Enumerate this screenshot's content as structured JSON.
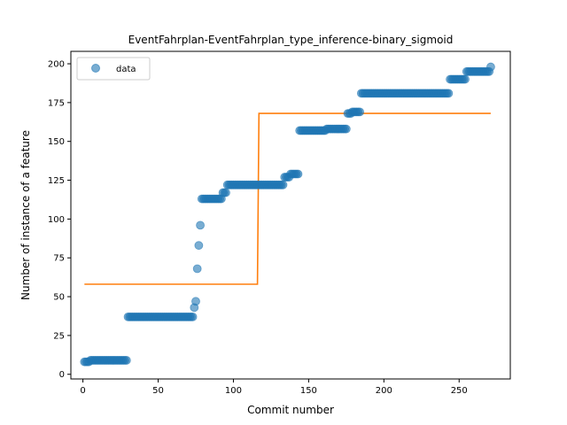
{
  "chart_data": {
    "type": "scatter",
    "title": "EventFahrplan-EventFahrplan_type_inference-binary_sigmoid",
    "xlabel": "Commit number",
    "ylabel": "Number of instance of a feature",
    "xlim": [
      -8,
      284
    ],
    "ylim": [
      -3,
      208
    ],
    "xticks": [
      0,
      50,
      100,
      150,
      200,
      250
    ],
    "yticks": [
      0,
      25,
      50,
      75,
      100,
      125,
      150,
      175,
      200
    ],
    "legend": {
      "position": "top-left",
      "entries": [
        "data"
      ]
    },
    "colors": {
      "data": "#1f77b4",
      "fit": "#ff7f0e"
    },
    "data_segments": [
      {
        "x_start": 1,
        "x_end": 4,
        "y": 8
      },
      {
        "x_start": 5,
        "x_end": 29,
        "y": 9
      },
      {
        "x_start": 30,
        "x_end": 73,
        "y": 37
      },
      {
        "x_start": 74,
        "x_end": 74,
        "y": 43
      },
      {
        "x_start": 75,
        "x_end": 75,
        "y": 47
      },
      {
        "x_start": 76,
        "x_end": 76,
        "y": 68
      },
      {
        "x_start": 77,
        "x_end": 77,
        "y": 83
      },
      {
        "x_start": 78,
        "x_end": 78,
        "y": 96
      },
      {
        "x_start": 79,
        "x_end": 92,
        "y": 113
      },
      {
        "x_start": 93,
        "x_end": 95,
        "y": 117
      },
      {
        "x_start": 96,
        "x_end": 133,
        "y": 122
      },
      {
        "x_start": 134,
        "x_end": 137,
        "y": 127
      },
      {
        "x_start": 138,
        "x_end": 143,
        "y": 129
      },
      {
        "x_start": 144,
        "x_end": 161,
        "y": 157
      },
      {
        "x_start": 162,
        "x_end": 175,
        "y": 158
      },
      {
        "x_start": 176,
        "x_end": 178,
        "y": 168
      },
      {
        "x_start": 179,
        "x_end": 184,
        "y": 169
      },
      {
        "x_start": 185,
        "x_end": 243,
        "y": 181
      },
      {
        "x_start": 244,
        "x_end": 254,
        "y": 190
      },
      {
        "x_start": 255,
        "x_end": 270,
        "y": 195
      },
      {
        "x_start": 271,
        "x_end": 271,
        "y": 198
      }
    ],
    "fit_line": {
      "x": [
        1,
        116,
        117,
        271
      ],
      "y": [
        58,
        58,
        168,
        168
      ]
    }
  }
}
